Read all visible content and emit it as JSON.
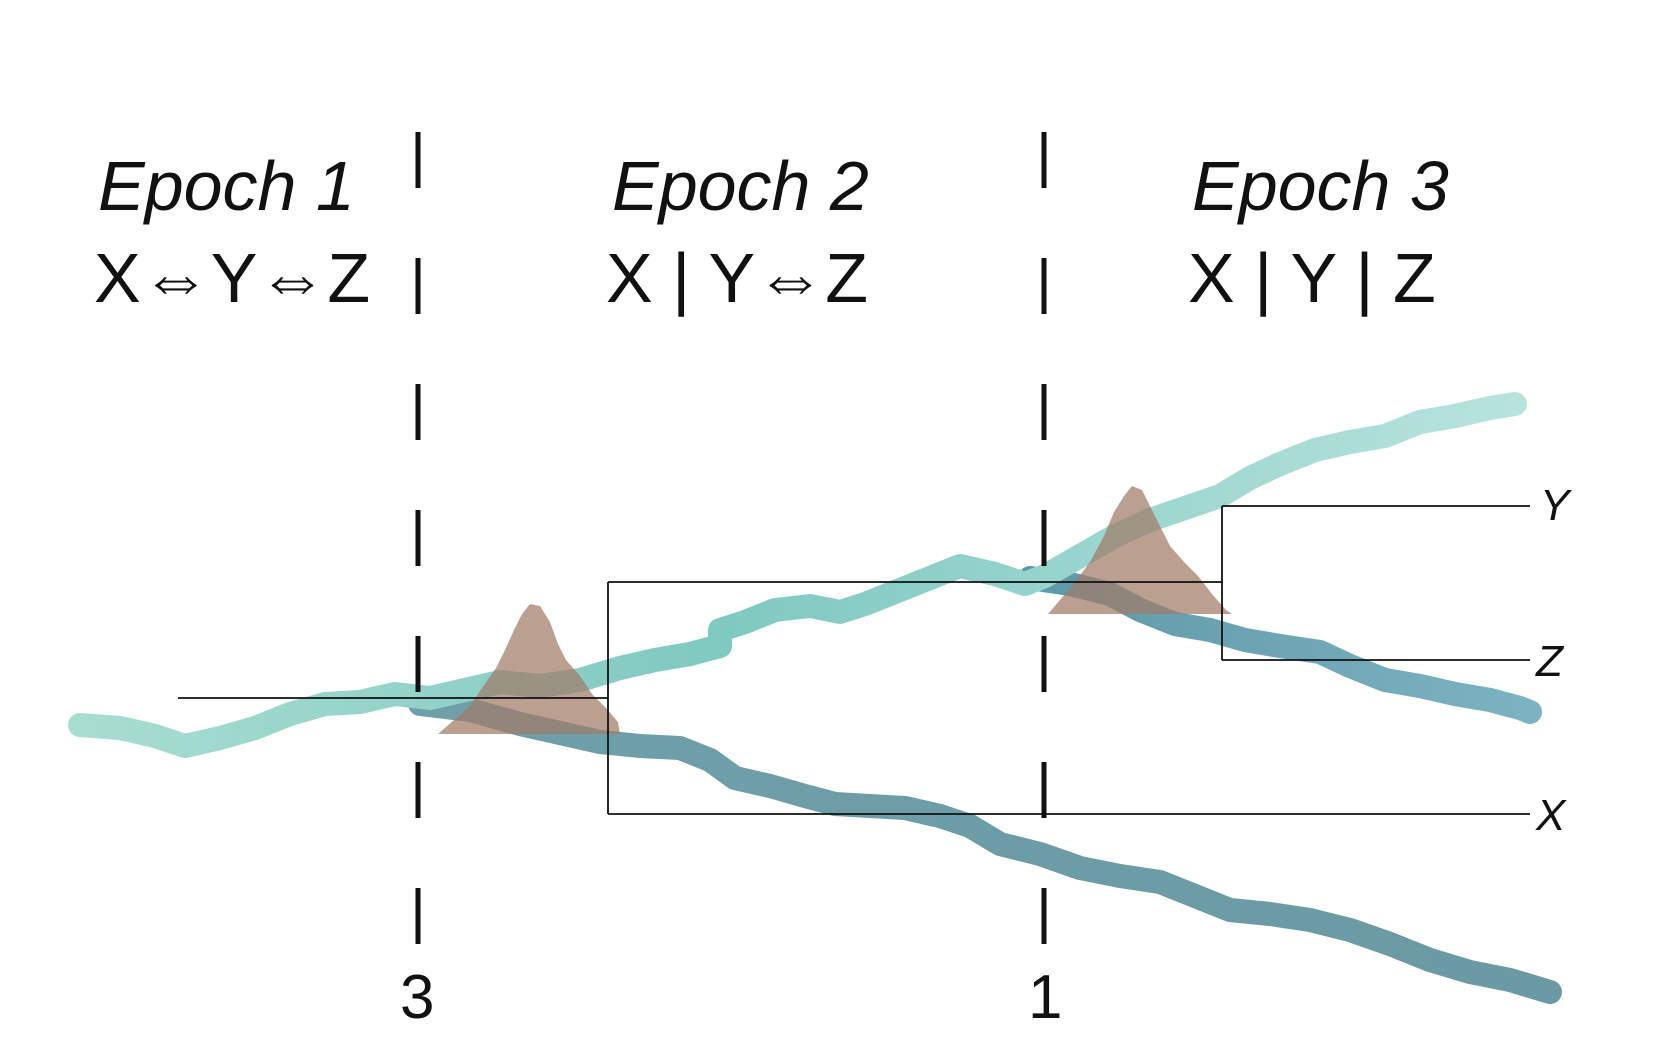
{
  "epochs": [
    {
      "title": "Epoch 1",
      "relation": "X⇔Y⇔Z"
    },
    {
      "title": "Epoch 2",
      "relation": "X | Y⇔Z"
    },
    {
      "title": "Epoch 3",
      "relation": "X | Y | Z"
    }
  ],
  "boundaries": [
    {
      "time_label": "3"
    },
    {
      "time_label": "1"
    }
  ],
  "tips": {
    "y": "Y",
    "z": "Z",
    "x": "X"
  },
  "colors": {
    "background": "#ffffff",
    "ink": "#111111",
    "lineage_light": "#9fd9cf",
    "lineage_mid": "#7fc7c0",
    "lineage_dark": "#5f949f",
    "lineage_z": "#6aa7b5",
    "density_peak": "#a5826f"
  }
}
